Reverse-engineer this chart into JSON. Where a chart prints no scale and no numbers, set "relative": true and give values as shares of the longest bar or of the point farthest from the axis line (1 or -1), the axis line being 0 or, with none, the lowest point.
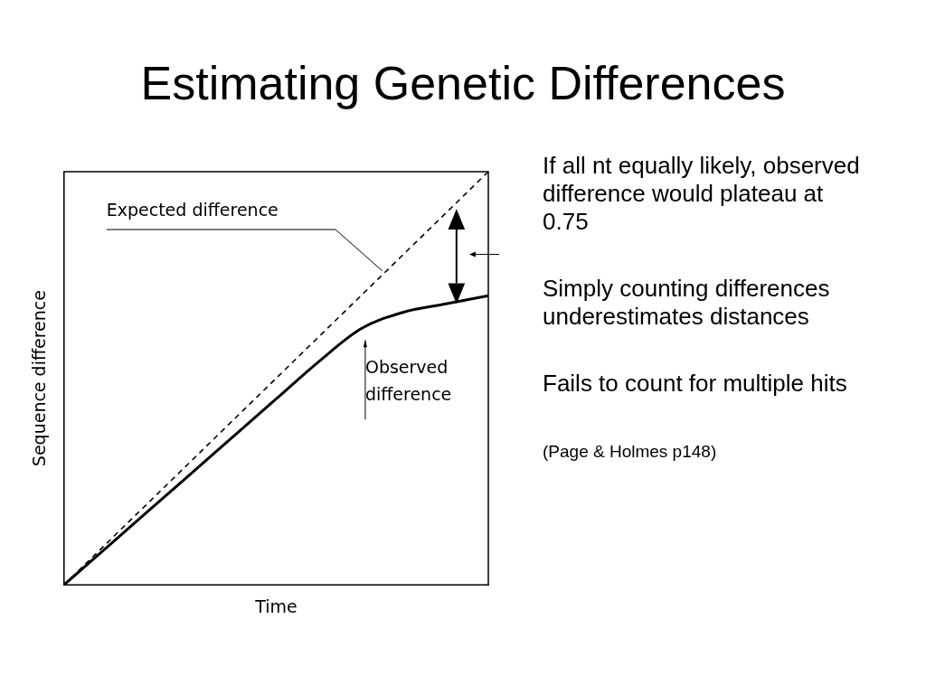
{
  "chart_data": {
    "type": "line",
    "title": "Estimating Genetic Differences",
    "xlabel": "Time",
    "ylabel": "Sequence difference",
    "relative": true,
    "grid": false,
    "legend": false,
    "marker": "none",
    "categories": [
      null,
      null,
      null,
      null,
      null,
      null,
      null,
      null,
      null,
      null,
      null
    ],
    "series": [
      {
        "color": "#000000",
        "line_style": "dashed",
        "values": [
          0,
          0.1,
          0.2,
          0.3,
          0.4,
          0.5,
          0.6,
          0.7,
          0.8,
          0.9,
          1.0
        ]
      },
      {
        "color": "#000000",
        "line_style": "solid",
        "values": [
          0,
          0.09,
          0.18,
          0.27,
          0.36,
          0.45,
          0.54,
          0.62,
          0.66,
          0.68,
          0.7
        ]
      }
    ],
    "annotations": [
      "Expected difference",
      "Observed difference",
      "If all nt equally likely, observed difference would plateau at 0.75",
      "Simply counting differences underestimates distances",
      "Fails to count for multiple hits",
      "(Page & Holmes p148)"
    ]
  }
}
